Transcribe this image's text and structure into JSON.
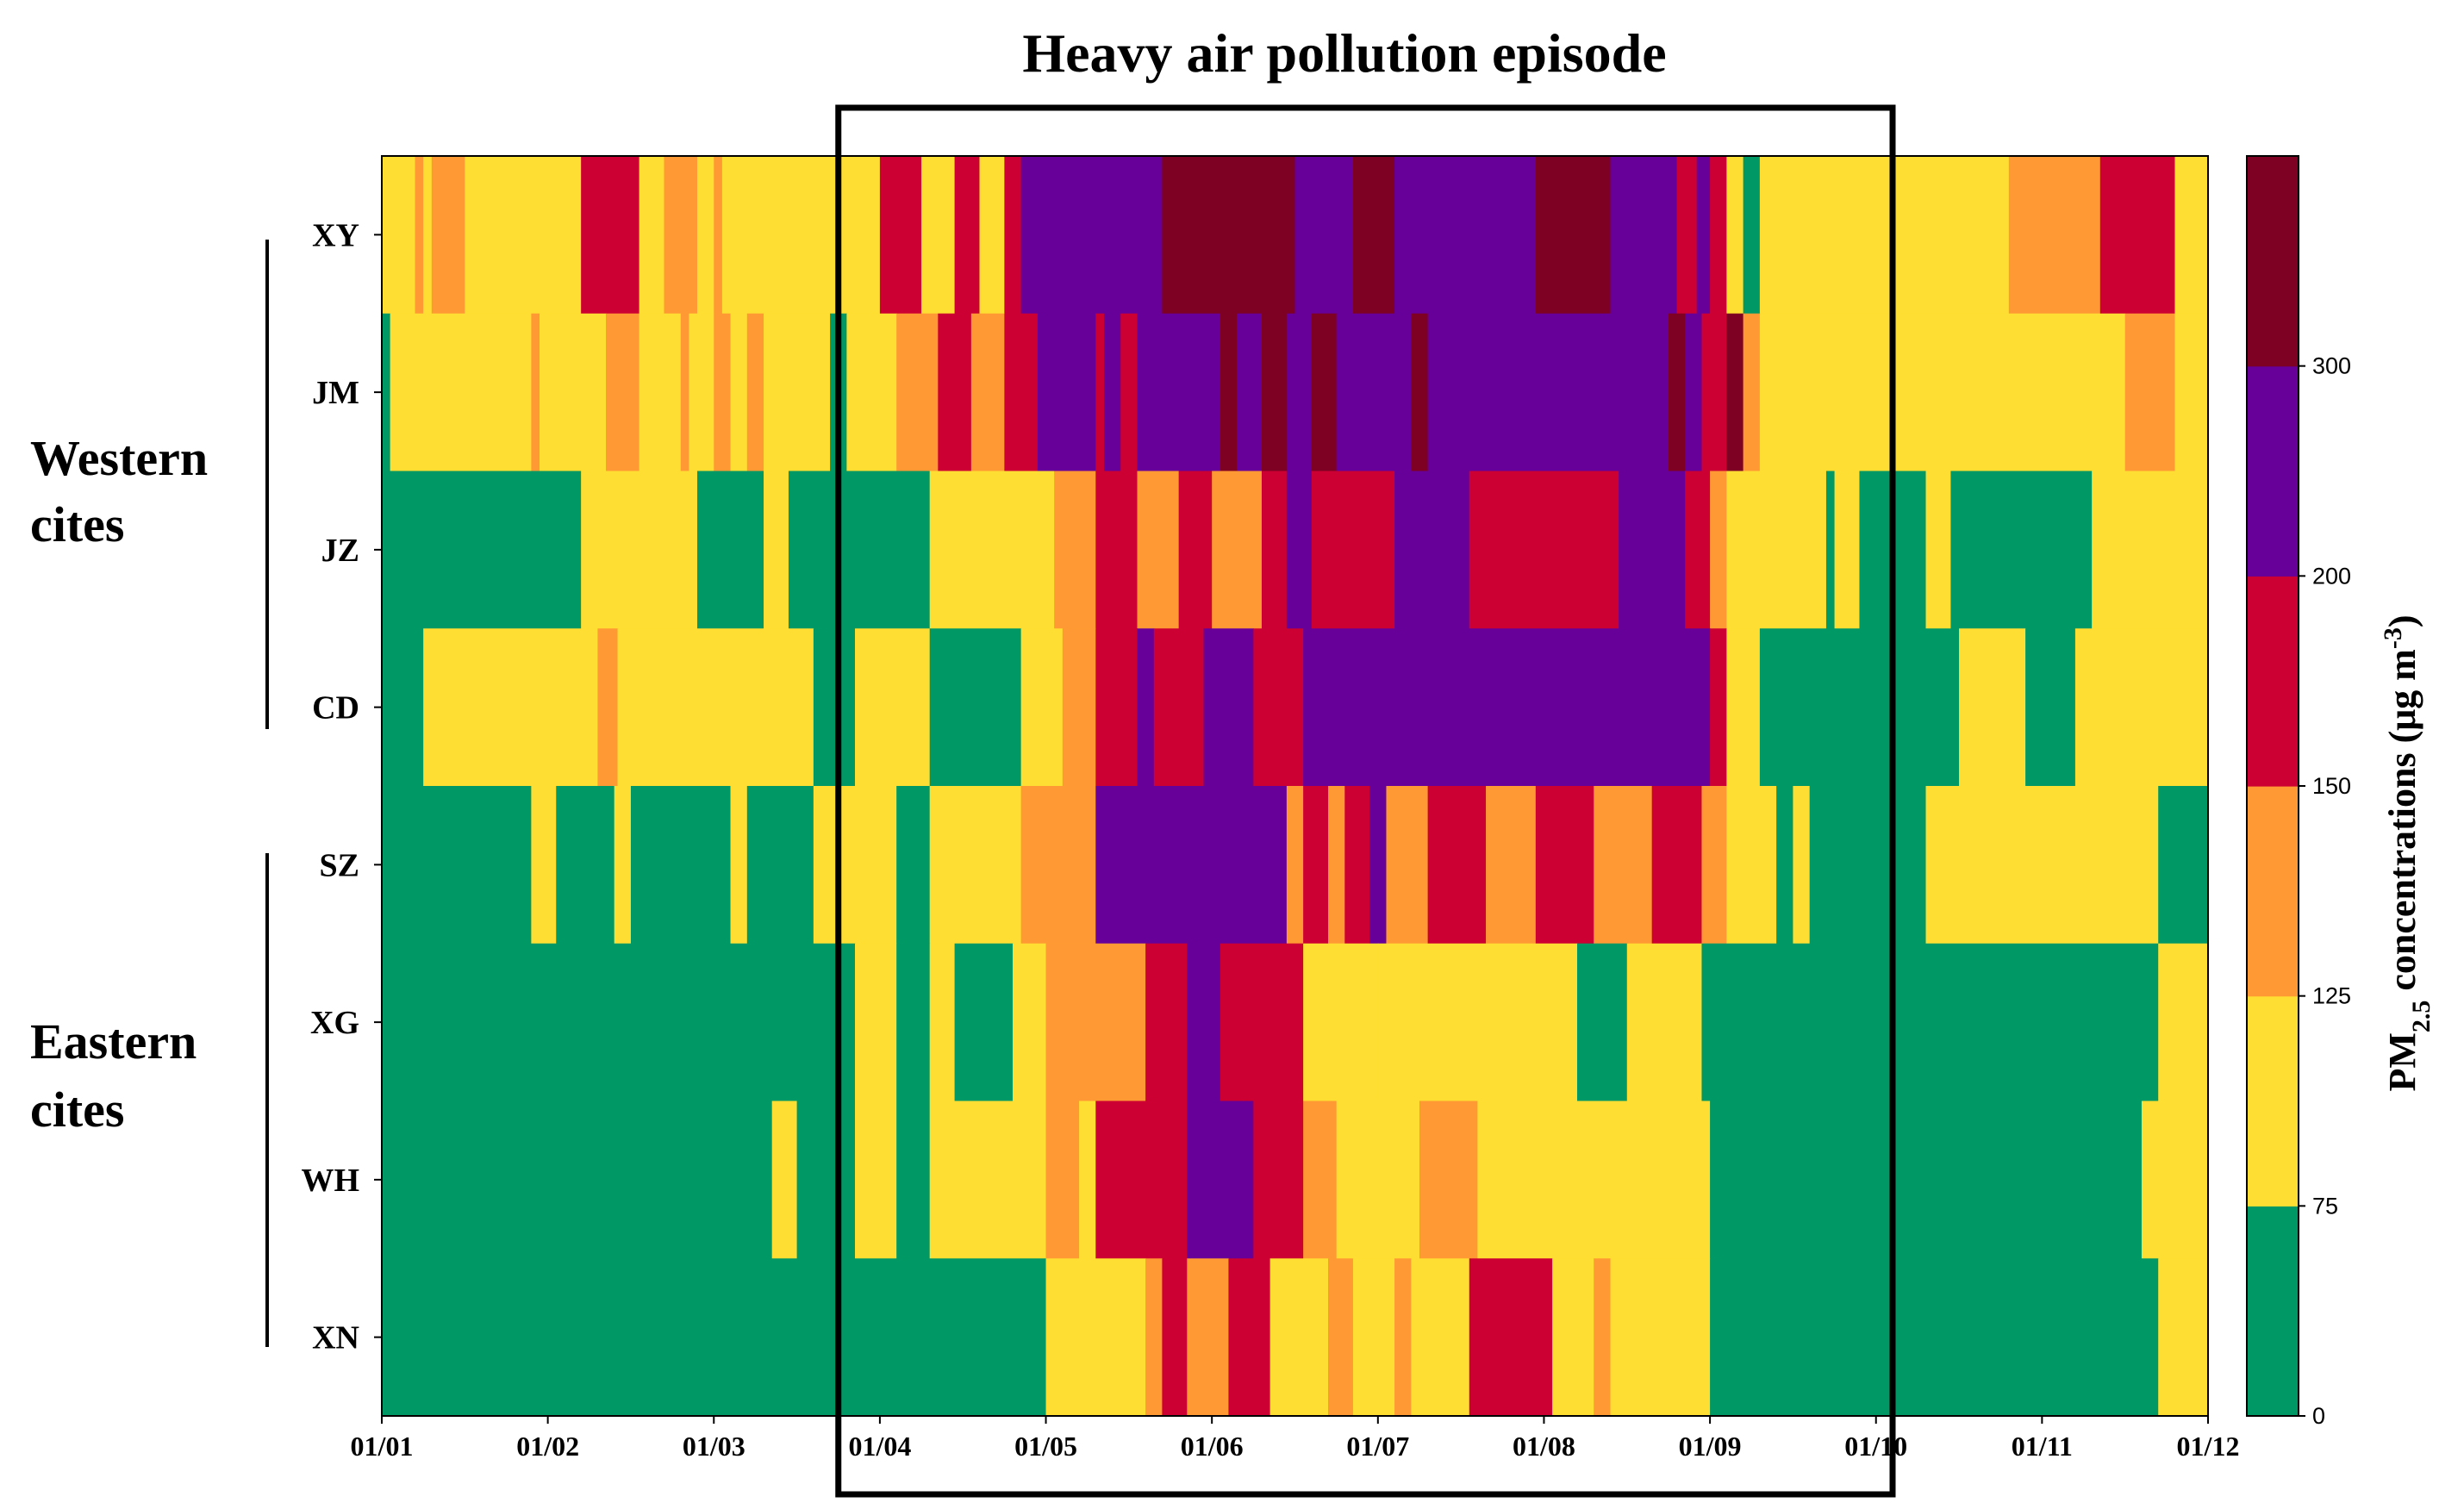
{
  "chart_data": {
    "type": "heatmap",
    "title": "Heavy air pollution episode",
    "xlabel": "",
    "ylabel": "",
    "x_tick_labels": [
      "01/01",
      "01/02",
      "01/03",
      "01/04",
      "01/05",
      "01/06",
      "01/07",
      "01/08",
      "01/09",
      "01/10",
      "01/11",
      "01/12"
    ],
    "x_range_days": [
      0,
      11
    ],
    "groups": [
      {
        "label_line1": "Western",
        "label_line2": "cites",
        "cities": [
          "XY",
          "JM",
          "JZ",
          "CD"
        ]
      },
      {
        "label_line1": "Eastern",
        "label_line2": "cites",
        "cities": [
          "SZ",
          "XG",
          "WH",
          "XN"
        ]
      }
    ],
    "highlight_episode": {
      "start_day": 2.75,
      "end_day": 9.1,
      "label": "Heavy air pollution episode"
    },
    "colorbar": {
      "label_main": "PM",
      "label_sub": "2.5",
      "label_rest": " concentrations (μg m",
      "label_sup": "-3",
      "label_end": ")",
      "ticks": [
        0,
        75,
        125,
        150,
        200,
        300
      ],
      "bins": [
        {
          "min": 0,
          "max": 75,
          "color": "#009966"
        },
        {
          "min": 75,
          "max": 125,
          "color": "#FFDE33"
        },
        {
          "min": 125,
          "max": 150,
          "color": "#FF9933"
        },
        {
          "min": 150,
          "max": 200,
          "color": "#CC0033"
        },
        {
          "min": 200,
          "max": 300,
          "color": "#660099"
        },
        {
          "min": 300,
          "max": 500,
          "color": "#7E0023"
        }
      ]
    },
    "series": [
      {
        "name": "XY",
        "segments": [
          [
            0,
            0.2,
            "Y"
          ],
          [
            0.2,
            0.25,
            "O"
          ],
          [
            0.25,
            0.3,
            "Y"
          ],
          [
            0.3,
            0.5,
            "O"
          ],
          [
            0.5,
            1.2,
            "Y"
          ],
          [
            1.2,
            1.55,
            "R"
          ],
          [
            1.55,
            1.7,
            "Y"
          ],
          [
            1.7,
            1.9,
            "O"
          ],
          [
            1.9,
            2.0,
            "Y"
          ],
          [
            2.0,
            2.05,
            "O"
          ],
          [
            2.05,
            3.0,
            "Y"
          ],
          [
            3.0,
            3.25,
            "R"
          ],
          [
            3.25,
            3.45,
            "Y"
          ],
          [
            3.45,
            3.6,
            "R"
          ],
          [
            3.6,
            3.75,
            "Y"
          ],
          [
            3.75,
            3.85,
            "R"
          ],
          [
            3.85,
            3.95,
            "P"
          ],
          [
            3.95,
            4.5,
            "P"
          ],
          [
            4.5,
            4.7,
            "P"
          ],
          [
            4.7,
            5.5,
            "D"
          ],
          [
            5.5,
            5.85,
            "P"
          ],
          [
            5.85,
            6.1,
            "D"
          ],
          [
            6.1,
            6.95,
            "P"
          ],
          [
            6.95,
            7.4,
            "D"
          ],
          [
            7.4,
            7.8,
            "P"
          ],
          [
            7.8,
            7.92,
            "R"
          ],
          [
            7.92,
            8.0,
            "P"
          ],
          [
            8.0,
            8.1,
            "R"
          ],
          [
            8.1,
            8.2,
            "Y"
          ],
          [
            8.2,
            8.3,
            "G"
          ],
          [
            8.3,
            9.8,
            "Y"
          ],
          [
            9.8,
            10.35,
            "O"
          ],
          [
            10.35,
            10.8,
            "R"
          ],
          [
            10.8,
            11,
            "Y"
          ]
        ]
      },
      {
        "name": "JM",
        "segments": [
          [
            0,
            0.05,
            "G"
          ],
          [
            0.05,
            0.9,
            "Y"
          ],
          [
            0.9,
            0.95,
            "O"
          ],
          [
            0.95,
            1.35,
            "Y"
          ],
          [
            1.35,
            1.55,
            "O"
          ],
          [
            1.55,
            1.8,
            "Y"
          ],
          [
            1.8,
            1.85,
            "O"
          ],
          [
            1.85,
            2.0,
            "Y"
          ],
          [
            2.0,
            2.1,
            "O"
          ],
          [
            2.1,
            2.2,
            "Y"
          ],
          [
            2.2,
            2.3,
            "O"
          ],
          [
            2.3,
            2.7,
            "Y"
          ],
          [
            2.7,
            2.8,
            "G"
          ],
          [
            2.8,
            3.1,
            "Y"
          ],
          [
            3.1,
            3.35,
            "O"
          ],
          [
            3.35,
            3.55,
            "R"
          ],
          [
            3.55,
            3.75,
            "O"
          ],
          [
            3.75,
            3.95,
            "R"
          ],
          [
            3.95,
            4.3,
            "P"
          ],
          [
            4.3,
            4.35,
            "R"
          ],
          [
            4.35,
            4.45,
            "P"
          ],
          [
            4.45,
            4.55,
            "R"
          ],
          [
            4.55,
            5.05,
            "P"
          ],
          [
            5.05,
            5.15,
            "D"
          ],
          [
            5.15,
            5.3,
            "P"
          ],
          [
            5.3,
            5.45,
            "D"
          ],
          [
            5.45,
            5.6,
            "P"
          ],
          [
            5.6,
            5.75,
            "D"
          ],
          [
            5.75,
            6.2,
            "P"
          ],
          [
            6.2,
            6.3,
            "D"
          ],
          [
            6.3,
            7.75,
            "P"
          ],
          [
            7.75,
            7.85,
            "D"
          ],
          [
            7.85,
            7.95,
            "P"
          ],
          [
            7.95,
            8.1,
            "R"
          ],
          [
            8.1,
            8.2,
            "D"
          ],
          [
            8.2,
            8.3,
            "O"
          ],
          [
            8.3,
            10.5,
            "Y"
          ],
          [
            10.5,
            10.8,
            "O"
          ],
          [
            10.8,
            11,
            "Y"
          ]
        ]
      },
      {
        "name": "JZ",
        "segments": [
          [
            0,
            1.2,
            "G"
          ],
          [
            1.2,
            1.9,
            "Y"
          ],
          [
            1.9,
            2.3,
            "G"
          ],
          [
            2.3,
            2.45,
            "Y"
          ],
          [
            2.45,
            3.3,
            "G"
          ],
          [
            3.3,
            4.05,
            "Y"
          ],
          [
            4.05,
            4.3,
            "O"
          ],
          [
            4.3,
            4.55,
            "R"
          ],
          [
            4.55,
            4.8,
            "O"
          ],
          [
            4.8,
            5.0,
            "R"
          ],
          [
            5.0,
            5.3,
            "O"
          ],
          [
            5.3,
            5.45,
            "R"
          ],
          [
            5.45,
            5.6,
            "P"
          ],
          [
            5.6,
            6.1,
            "R"
          ],
          [
            6.1,
            6.55,
            "P"
          ],
          [
            6.55,
            7.45,
            "R"
          ],
          [
            7.45,
            7.85,
            "P"
          ],
          [
            7.85,
            8.0,
            "R"
          ],
          [
            8.0,
            8.1,
            "O"
          ],
          [
            8.1,
            8.7,
            "Y"
          ],
          [
            8.7,
            8.75,
            "G"
          ],
          [
            8.75,
            8.9,
            "Y"
          ],
          [
            8.9,
            9.3,
            "G"
          ],
          [
            9.3,
            9.45,
            "Y"
          ],
          [
            9.45,
            10.3,
            "G"
          ],
          [
            10.3,
            11,
            "Y"
          ]
        ]
      },
      {
        "name": "CD",
        "segments": [
          [
            0,
            0.25,
            "G"
          ],
          [
            0.25,
            1.3,
            "Y"
          ],
          [
            1.3,
            1.42,
            "O"
          ],
          [
            1.42,
            2.6,
            "Y"
          ],
          [
            2.6,
            2.85,
            "G"
          ],
          [
            2.85,
            3.3,
            "Y"
          ],
          [
            3.3,
            3.85,
            "G"
          ],
          [
            3.85,
            4.1,
            "Y"
          ],
          [
            4.1,
            4.3,
            "O"
          ],
          [
            4.3,
            4.55,
            "R"
          ],
          [
            4.55,
            4.65,
            "P"
          ],
          [
            4.65,
            4.95,
            "R"
          ],
          [
            4.95,
            5.25,
            "P"
          ],
          [
            5.25,
            5.55,
            "R"
          ],
          [
            5.55,
            8.0,
            "P"
          ],
          [
            8.0,
            8.1,
            "R"
          ],
          [
            8.1,
            8.3,
            "Y"
          ],
          [
            8.3,
            9.5,
            "G"
          ],
          [
            9.5,
            9.9,
            "Y"
          ],
          [
            9.9,
            10.2,
            "G"
          ],
          [
            10.2,
            11,
            "Y"
          ]
        ]
      },
      {
        "name": "SZ",
        "segments": [
          [
            0,
            0.9,
            "G"
          ],
          [
            0.9,
            1.05,
            "Y"
          ],
          [
            1.05,
            1.4,
            "G"
          ],
          [
            1.4,
            1.5,
            "Y"
          ],
          [
            1.5,
            2.1,
            "G"
          ],
          [
            2.1,
            2.2,
            "Y"
          ],
          [
            2.2,
            2.6,
            "G"
          ],
          [
            2.6,
            3.1,
            "Y"
          ],
          [
            3.1,
            3.3,
            "G"
          ],
          [
            3.3,
            3.85,
            "Y"
          ],
          [
            3.85,
            4.3,
            "O"
          ],
          [
            4.3,
            5.45,
            "P"
          ],
          [
            5.45,
            5.55,
            "O"
          ],
          [
            5.55,
            5.7,
            "R"
          ],
          [
            5.7,
            5.8,
            "O"
          ],
          [
            5.8,
            5.95,
            "R"
          ],
          [
            5.95,
            6.05,
            "P"
          ],
          [
            6.05,
            6.3,
            "O"
          ],
          [
            6.3,
            6.65,
            "R"
          ],
          [
            6.65,
            6.95,
            "O"
          ],
          [
            6.95,
            7.3,
            "R"
          ],
          [
            7.3,
            7.65,
            "O"
          ],
          [
            7.65,
            7.95,
            "R"
          ],
          [
            7.95,
            8.1,
            "O"
          ],
          [
            8.1,
            8.4,
            "Y"
          ],
          [
            8.4,
            8.5,
            "G"
          ],
          [
            8.5,
            8.6,
            "Y"
          ],
          [
            8.6,
            9.3,
            "G"
          ],
          [
            9.3,
            10.7,
            "Y"
          ],
          [
            10.7,
            11,
            "G"
          ]
        ]
      },
      {
        "name": "XG",
        "segments": [
          [
            0,
            2.85,
            "G"
          ],
          [
            2.85,
            3.1,
            "Y"
          ],
          [
            3.1,
            3.3,
            "G"
          ],
          [
            3.3,
            3.45,
            "Y"
          ],
          [
            3.45,
            3.8,
            "G"
          ],
          [
            3.8,
            4.0,
            "Y"
          ],
          [
            4.0,
            4.6,
            "O"
          ],
          [
            4.6,
            4.85,
            "R"
          ],
          [
            4.85,
            5.05,
            "P"
          ],
          [
            5.05,
            5.55,
            "R"
          ],
          [
            5.55,
            6.0,
            "Y"
          ],
          [
            6.0,
            7.2,
            "Y"
          ],
          [
            7.2,
            7.5,
            "G"
          ],
          [
            7.5,
            7.95,
            "Y"
          ],
          [
            7.95,
            10.7,
            "G"
          ],
          [
            10.7,
            11,
            "Y"
          ]
        ]
      },
      {
        "name": "WH",
        "segments": [
          [
            0,
            2.35,
            "G"
          ],
          [
            2.35,
            2.5,
            "Y"
          ],
          [
            2.5,
            2.85,
            "G"
          ],
          [
            2.85,
            3.1,
            "Y"
          ],
          [
            3.1,
            3.3,
            "G"
          ],
          [
            3.3,
            4.0,
            "Y"
          ],
          [
            4.0,
            4.2,
            "O"
          ],
          [
            4.2,
            4.3,
            "Y"
          ],
          [
            4.3,
            4.85,
            "R"
          ],
          [
            4.85,
            5.25,
            "P"
          ],
          [
            5.25,
            5.55,
            "R"
          ],
          [
            5.55,
            5.75,
            "O"
          ],
          [
            5.75,
            6.25,
            "Y"
          ],
          [
            6.25,
            6.6,
            "O"
          ],
          [
            6.6,
            7.0,
            "Y"
          ],
          [
            7.0,
            8.0,
            "Y"
          ],
          [
            8.0,
            10.6,
            "G"
          ],
          [
            10.6,
            11,
            "Y"
          ]
        ]
      },
      {
        "name": "XN",
        "segments": [
          [
            0,
            4.0,
            "G"
          ],
          [
            4.0,
            4.6,
            "Y"
          ],
          [
            4.6,
            4.7,
            "O"
          ],
          [
            4.7,
            4.85,
            "R"
          ],
          [
            4.85,
            5.1,
            "O"
          ],
          [
            5.1,
            5.35,
            "R"
          ],
          [
            5.35,
            5.7,
            "Y"
          ],
          [
            5.7,
            5.85,
            "O"
          ],
          [
            5.85,
            6.1,
            "Y"
          ],
          [
            6.1,
            6.2,
            "O"
          ],
          [
            6.2,
            6.55,
            "Y"
          ],
          [
            6.55,
            7.05,
            "R"
          ],
          [
            7.05,
            7.3,
            "Y"
          ],
          [
            7.3,
            7.4,
            "O"
          ],
          [
            7.4,
            8.0,
            "Y"
          ],
          [
            8.0,
            10.7,
            "G"
          ],
          [
            10.7,
            11,
            "Y"
          ]
        ]
      }
    ],
    "color_key": {
      "G": "#009966",
      "Y": "#FFDE33",
      "O": "#FF9933",
      "R": "#CC0033",
      "P": "#660099",
      "D": "#7E0023"
    }
  }
}
